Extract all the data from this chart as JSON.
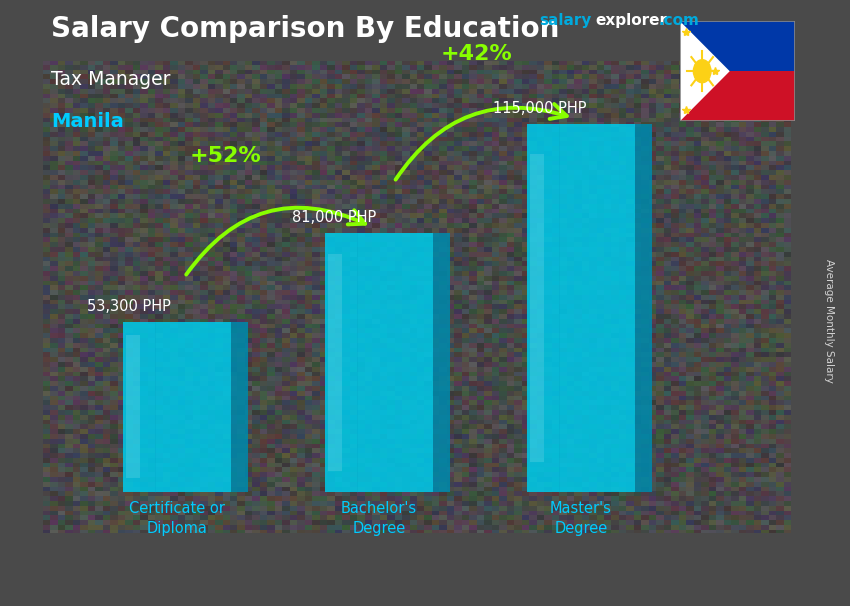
{
  "title": "Salary Comparison By Education",
  "subtitle": "Tax Manager",
  "location": "Manila",
  "rotated_label": "Average Monthly Salary",
  "categories": [
    "Certificate or\nDiploma",
    "Bachelor's\nDegree",
    "Master's\nDegree"
  ],
  "values": [
    53300,
    81000,
    115000
  ],
  "value_labels": [
    "53,300 PHP",
    "81,000 PHP",
    "115,000 PHP"
  ],
  "pct_labels": [
    "+52%",
    "+42%"
  ],
  "bar_front_color": "#00c8e8",
  "bar_side_color": "#0088aa",
  "bar_top_color": "#44ddff",
  "title_color": "#ffffff",
  "subtitle_color": "#ffffff",
  "location_color": "#00ccff",
  "value_label_color": "#ffffff",
  "pct_color": "#88ff00",
  "xlabel_color": "#00ccff",
  "brand_salary_color": "#00aadd",
  "brand_explorer_color": "#ffffff",
  "brand_com_color": "#00aadd",
  "bg_color": "#4a4a4a",
  "overlay_alpha": 0.45
}
